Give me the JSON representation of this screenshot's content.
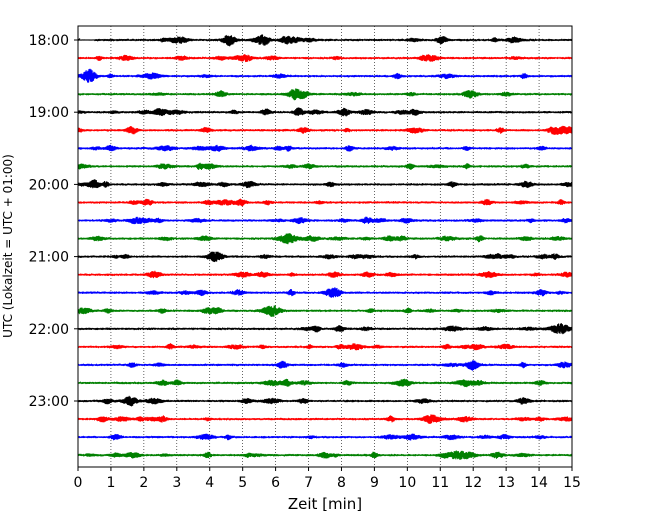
{
  "chart_data": {
    "type": "line",
    "title": "",
    "xlabel": "Zeit  [min]",
    "ylabel": "UTC (Lokalzeit = UTC + 01:00)",
    "xlim": [
      0,
      15
    ],
    "x_ticks": [
      "0",
      "1",
      "2",
      "3",
      "4",
      "5",
      "6",
      "7",
      "8",
      "9",
      "10",
      "11",
      "12",
      "13",
      "14",
      "15"
    ],
    "y_tick_labels": [
      "18:00",
      "19:00",
      "20:00",
      "21:00",
      "22:00",
      "23:00"
    ],
    "vertical_grid": true,
    "grid_style": "dotted",
    "trace_interval_min": 15,
    "traces": [
      {
        "start": "18:00",
        "color": "#000000"
      },
      {
        "start": "18:15",
        "color": "#ff0000"
      },
      {
        "start": "18:30",
        "color": "#0000ff"
      },
      {
        "start": "18:45",
        "color": "#008000"
      },
      {
        "start": "19:00",
        "color": "#000000"
      },
      {
        "start": "19:15",
        "color": "#ff0000"
      },
      {
        "start": "19:30",
        "color": "#0000ff"
      },
      {
        "start": "19:45",
        "color": "#008000"
      },
      {
        "start": "20:00",
        "color": "#000000"
      },
      {
        "start": "20:15",
        "color": "#ff0000"
      },
      {
        "start": "20:30",
        "color": "#0000ff"
      },
      {
        "start": "20:45",
        "color": "#008000"
      },
      {
        "start": "21:00",
        "color": "#000000"
      },
      {
        "start": "21:15",
        "color": "#ff0000"
      },
      {
        "start": "21:30",
        "color": "#0000ff"
      },
      {
        "start": "21:45",
        "color": "#008000"
      },
      {
        "start": "22:00",
        "color": "#000000"
      },
      {
        "start": "22:15",
        "color": "#ff0000"
      },
      {
        "start": "22:30",
        "color": "#0000ff"
      },
      {
        "start": "22:45",
        "color": "#008000"
      },
      {
        "start": "23:00",
        "color": "#000000"
      },
      {
        "start": "23:15",
        "color": "#ff0000"
      },
      {
        "start": "23:30",
        "color": "#0000ff"
      },
      {
        "start": "23:45",
        "color": "#008000"
      }
    ]
  }
}
